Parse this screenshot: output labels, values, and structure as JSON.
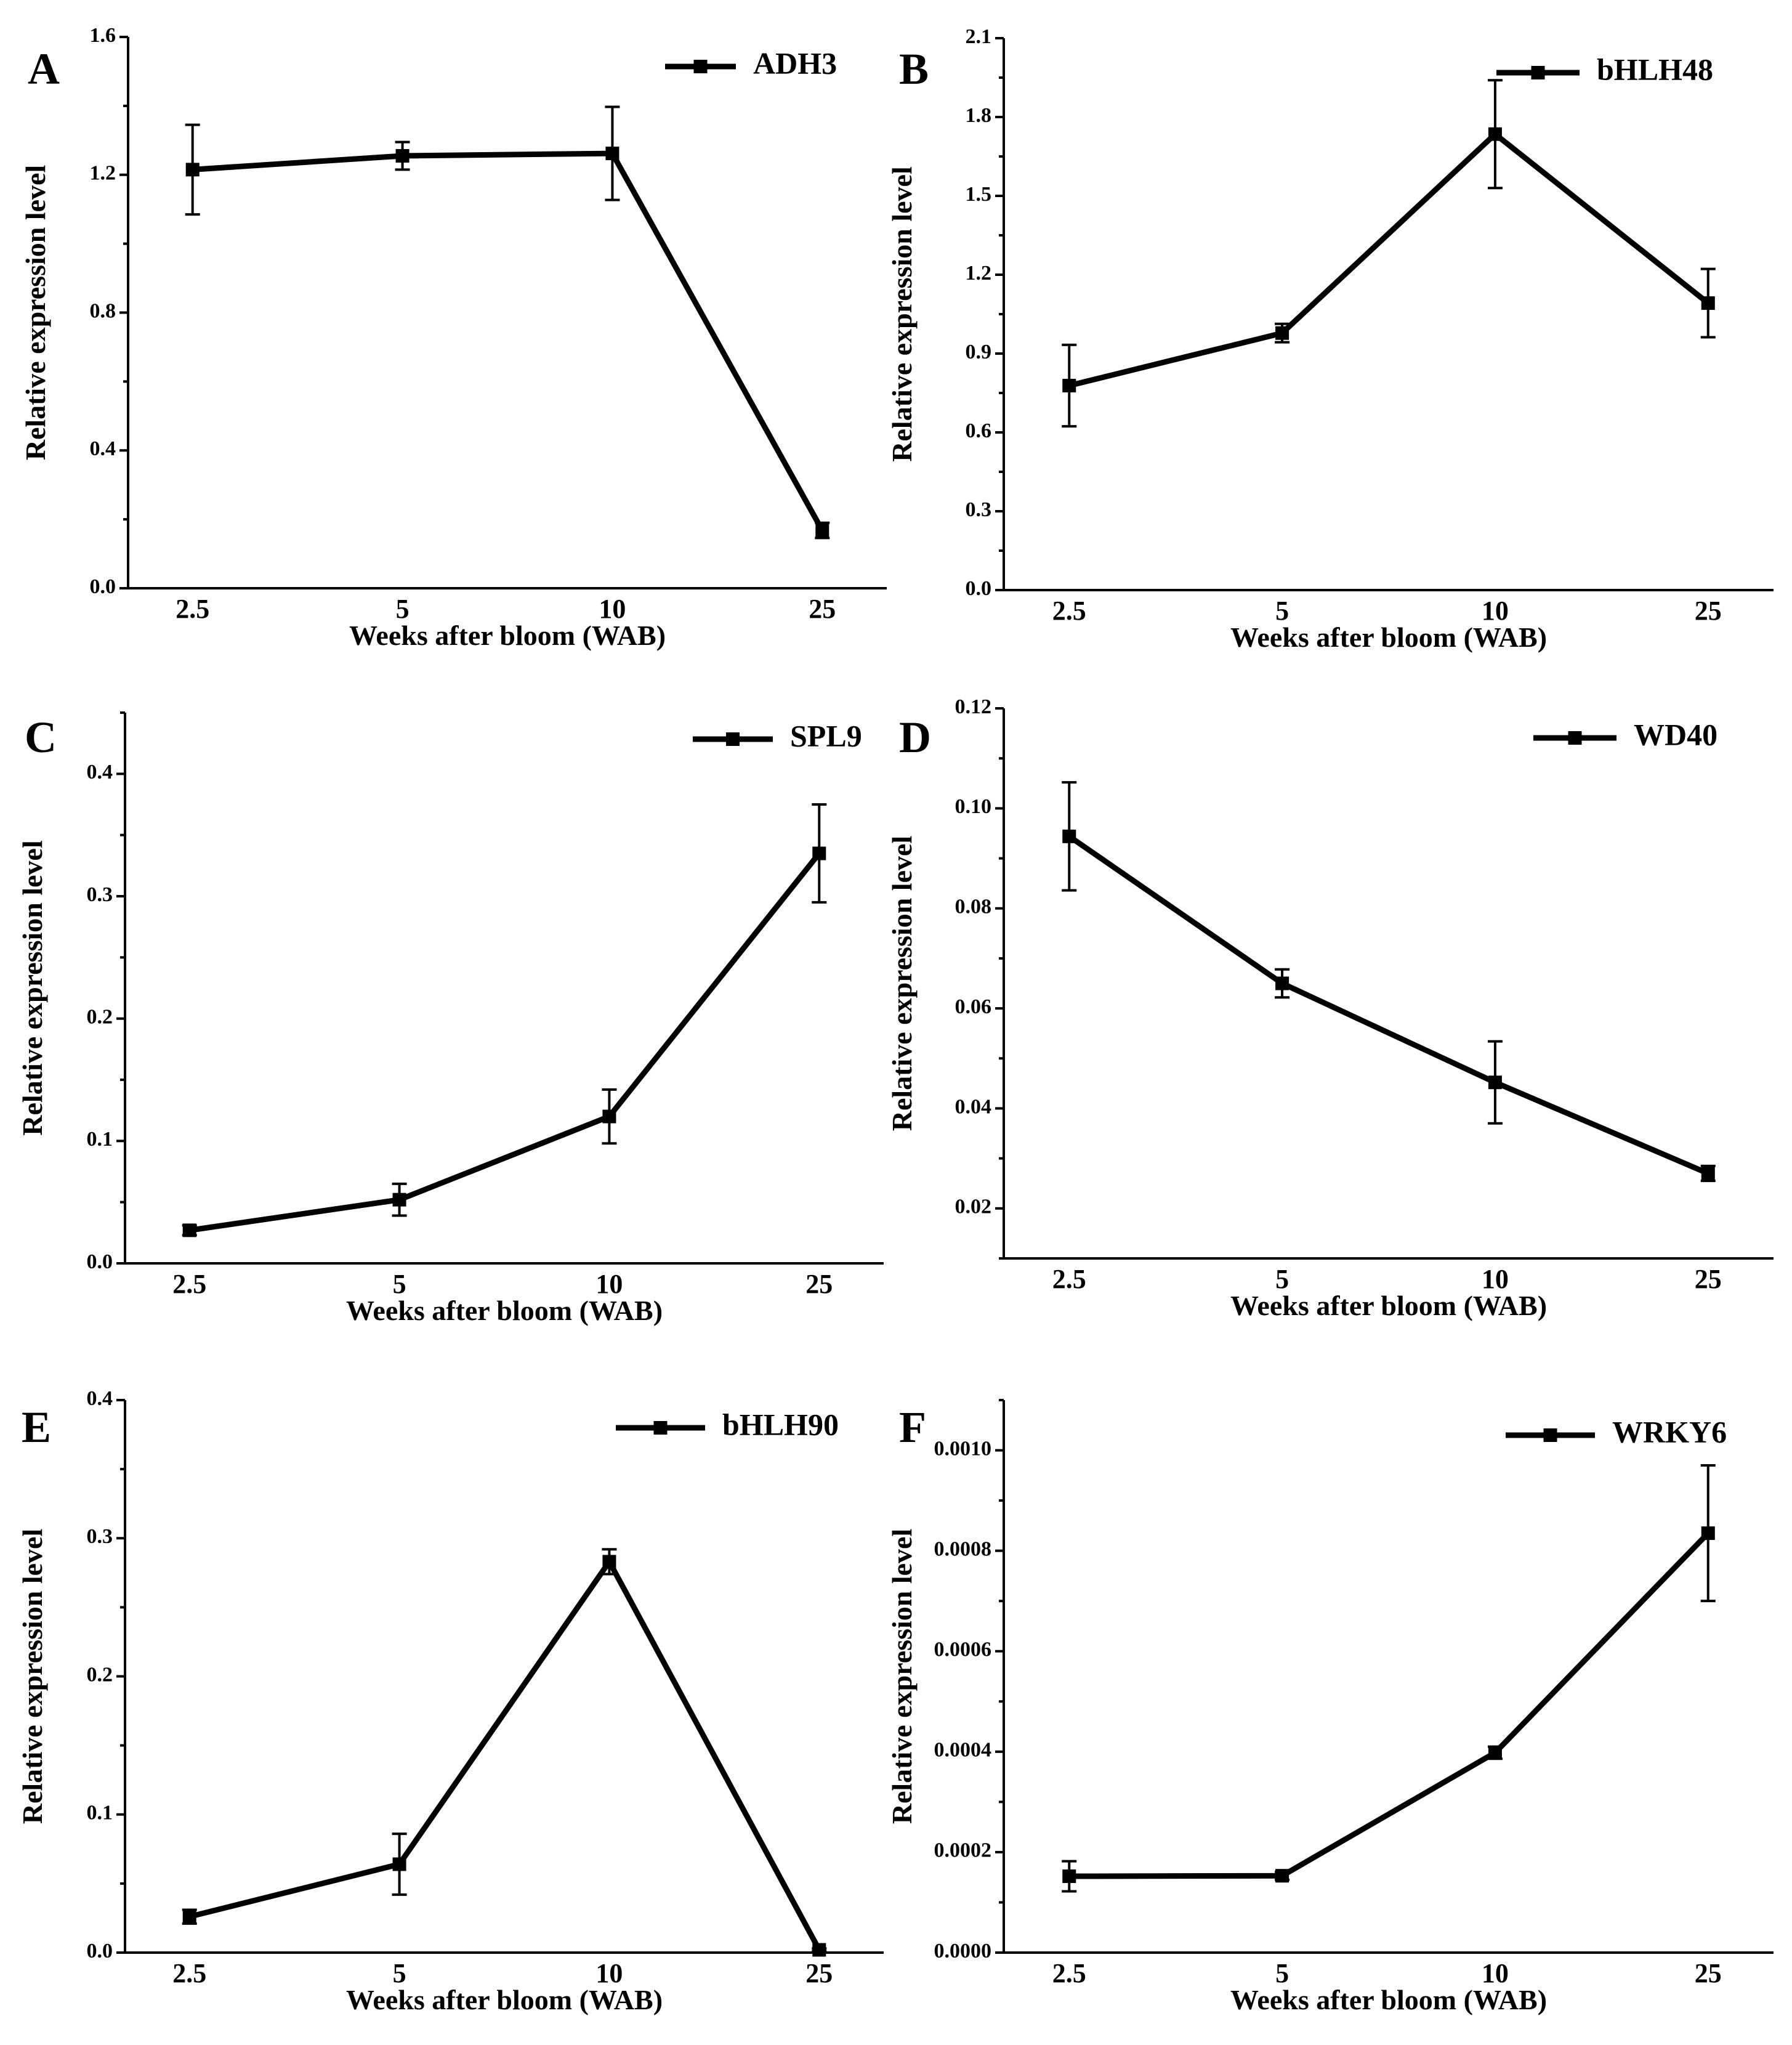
{
  "chart_data": [
    {
      "panel": "A",
      "type": "line",
      "categories": [
        "2.5",
        "5",
        "10",
        "25"
      ],
      "series": [
        {
          "name": "ADH3",
          "values": [
            1.215,
            1.255,
            1.262,
            0.168
          ],
          "errors": [
            0.13,
            0.04,
            0.135,
            0.022
          ]
        }
      ],
      "xlabel": "Weeks after bloom (WAB)",
      "ylabel": "Relative expression level",
      "ylim": [
        0,
        1.6
      ],
      "yticks": [
        "0.0",
        "0.4",
        "0.8",
        "1.2",
        "1.6"
      ],
      "legend": "top-right",
      "grid": false
    },
    {
      "panel": "B",
      "type": "line",
      "categories": [
        "2.5",
        "5",
        "10",
        "25"
      ],
      "series": [
        {
          "name": "bHLH48",
          "values": [
            0.778,
            0.978,
            1.735,
            1.092
          ],
          "errors": [
            0.155,
            0.035,
            0.205,
            0.13
          ]
        }
      ],
      "xlabel": "Weeks after bloom (WAB)",
      "ylabel": "Relative expression level",
      "ylim": [
        0,
        2.1
      ],
      "yticks": [
        "0.0",
        "0.3",
        "0.6",
        "0.9",
        "1.2",
        "1.5",
        "1.8",
        "2.1"
      ],
      "legend": "top-right",
      "grid": false
    },
    {
      "panel": "C",
      "type": "line",
      "categories": [
        "2.5",
        "5",
        "10",
        "25"
      ],
      "series": [
        {
          "name": "SPL9",
          "values": [
            0.027,
            0.052,
            0.12,
            0.335
          ],
          "errors": [
            0.004,
            0.013,
            0.022,
            0.04
          ]
        }
      ],
      "xlabel": "Weeks after bloom (WAB)",
      "ylabel": "Relative expression level",
      "ylim": [
        0,
        0.45
      ],
      "yticks": [
        "0.0",
        "0.1",
        "0.2",
        "0.3",
        "0.4"
      ],
      "legend": "top-right",
      "grid": false
    },
    {
      "panel": "D",
      "type": "line",
      "categories": [
        "2.5",
        "5",
        "10",
        "25"
      ],
      "series": [
        {
          "name": "WD40",
          "values": [
            0.0944,
            0.065,
            0.0452,
            0.027
          ],
          "errors": [
            0.0108,
            0.0028,
            0.0082,
            0.0015
          ]
        }
      ],
      "xlabel": "Weeks after bloom (WAB)",
      "ylabel": "Relative expression level",
      "ylim": [
        0.01,
        0.12
      ],
      "yticks": [
        "0.02",
        "0.04",
        "0.06",
        "0.08",
        "0.10",
        "0.12"
      ],
      "legend": "top-right",
      "grid": false
    },
    {
      "panel": "E",
      "type": "line",
      "categories": [
        "2.5",
        "5",
        "10",
        "25"
      ],
      "series": [
        {
          "name": "bHLH90",
          "values": [
            0.026,
            0.064,
            0.283,
            0.002
          ],
          "errors": [
            0.005,
            0.022,
            0.009,
            0.001
          ]
        }
      ],
      "xlabel": "Weeks after bloom (WAB)",
      "ylabel": "Relative expression level",
      "ylim": [
        0,
        0.4
      ],
      "yticks": [
        "0.0",
        "0.1",
        "0.2",
        "0.3",
        "0.4"
      ],
      "legend": "top-right",
      "grid": false
    },
    {
      "panel": "F",
      "type": "line",
      "categories": [
        "2.5",
        "5",
        "10",
        "25"
      ],
      "series": [
        {
          "name": "WRKY6",
          "values": [
            0.000152,
            0.000153,
            0.000398,
            0.000835
          ],
          "errors": [
            3e-05,
            8e-06,
            1.2e-05,
            0.000135
          ]
        }
      ],
      "xlabel": "Weeks after bloom (WAB)",
      "ylabel": "Relative expression level",
      "ylim": [
        0,
        0.0011
      ],
      "yticks": [
        "0.0000",
        "0.0002",
        "0.0004",
        "0.0006",
        "0.0008",
        "0.0010"
      ],
      "legend": "top-right",
      "grid": false
    }
  ]
}
